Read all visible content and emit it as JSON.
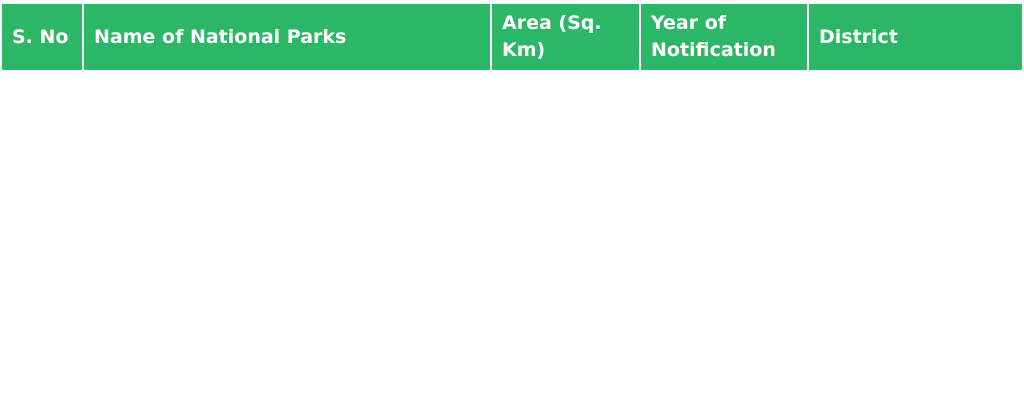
{
  "table": {
    "header_color": "#2bb765",
    "columns": [
      "S. No",
      "Name of National Parks",
      "Area (Sq. Km)",
      "Year of Notification",
      "District"
    ],
    "rows": []
  }
}
